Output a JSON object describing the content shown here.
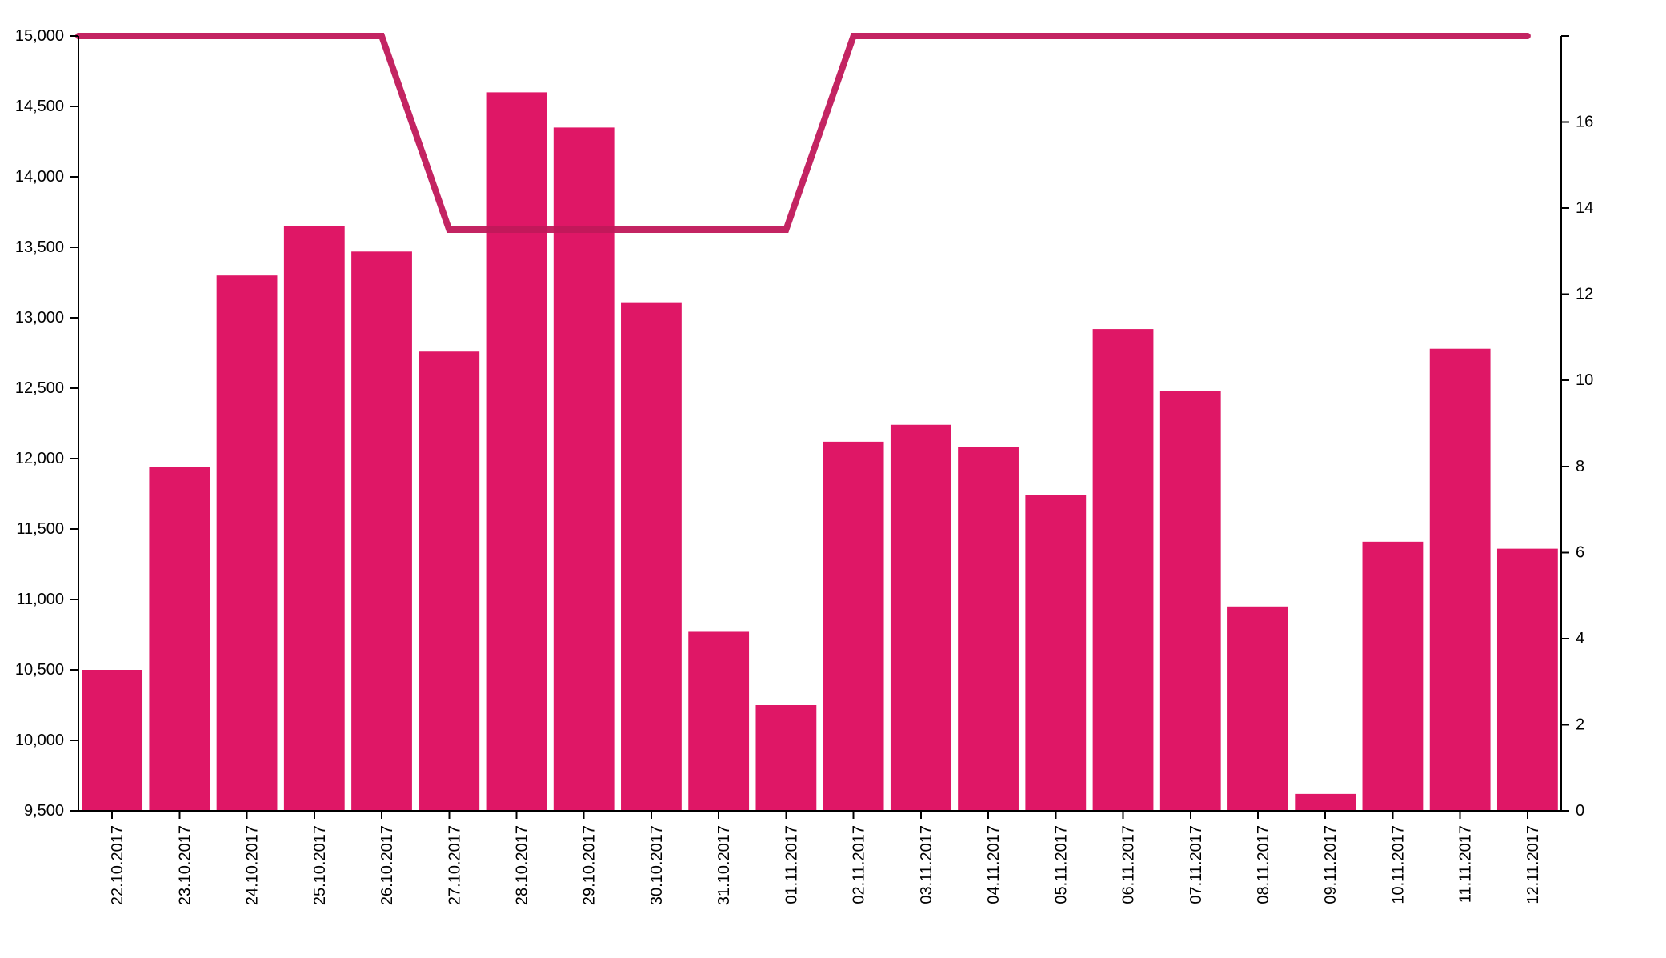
{
  "chart_data": {
    "type": "bar",
    "categories": [
      "22.10.2017",
      "23.10.2017",
      "24.10.2017",
      "25.10.2017",
      "26.10.2017",
      "27.10.2017",
      "28.10.2017",
      "29.10.2017",
      "30.10.2017",
      "31.10.2017",
      "01.11.2017",
      "02.11.2017",
      "03.11.2017",
      "04.11.2017",
      "05.11.2017",
      "06.11.2017",
      "07.11.2017",
      "08.11.2017",
      "09.11.2017",
      "10.11.2017",
      "11.11.2017",
      "12.11.2017"
    ],
    "series": [
      {
        "type": "bar",
        "axis": "left",
        "color": "#df1766",
        "values": [
          10500,
          11940,
          13300,
          13650,
          13470,
          12760,
          14600,
          14350,
          13110,
          10770,
          10250,
          12120,
          12240,
          12080,
          11740,
          12920,
          12480,
          10950,
          9620,
          11410,
          12780,
          11360
        ]
      },
      {
        "type": "line",
        "axis": "right",
        "color": "#c0185a",
        "values": [
          18,
          18,
          18,
          18,
          18,
          13.5,
          13.5,
          13.5,
          13.5,
          13.5,
          13.5,
          18,
          18,
          18,
          18,
          18,
          18,
          18,
          18,
          18,
          18,
          18
        ]
      }
    ],
    "y_left": {
      "min": 9500,
      "max": 15000,
      "ticks": [
        9500,
        10000,
        10500,
        11000,
        11500,
        12000,
        12500,
        13000,
        13500,
        14000,
        14500,
        15000
      ],
      "tick_labels": [
        "9,500",
        "10,000",
        "10,500",
        "11,000",
        "11,500",
        "12,000",
        "12,500",
        "13,000",
        "13,500",
        "14,000",
        "14,500",
        "15,000"
      ]
    },
    "y_right": {
      "min": 0,
      "max": 18,
      "ticks": [
        0,
        2,
        4,
        6,
        8,
        10,
        12,
        14,
        16
      ],
      "tick_labels": [
        "0",
        "2",
        "4",
        "6",
        "8",
        "10",
        "12",
        "14",
        "16"
      ]
    },
    "xlabel": "",
    "ylabel": "",
    "title": "",
    "grid": false,
    "legend": "none"
  }
}
